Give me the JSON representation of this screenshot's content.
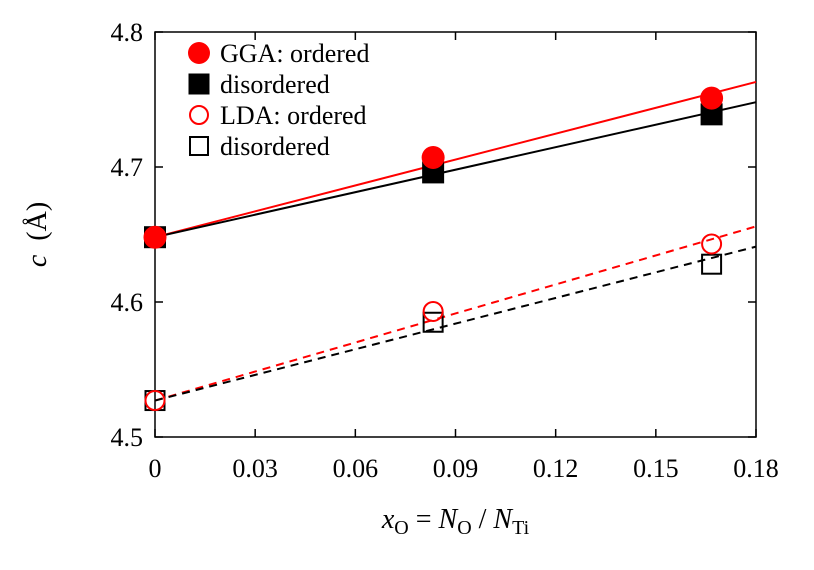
{
  "chart_data": {
    "type": "scatter",
    "xlabel": "x_O = N_O / N_Ti",
    "ylabel": "c (Å)",
    "xlim": [
      0,
      0.18
    ],
    "ylim": [
      4.5,
      4.8
    ],
    "xticks": [
      0,
      0.03,
      0.06,
      0.09,
      0.12,
      0.15,
      0.18
    ],
    "xtick_labels": [
      "0",
      "0.03",
      "0.06",
      "0.09",
      "0.12",
      "0.15",
      "0.18"
    ],
    "yticks": [
      4.5,
      4.6,
      4.7,
      4.8
    ],
    "ytick_labels": [
      "4.5",
      "4.6",
      "4.7",
      "4.8"
    ],
    "legend_position": "top-left",
    "series": [
      {
        "name": "GGA: ordered",
        "marker": "circle-filled",
        "color": "#ff0000",
        "x": [
          0,
          0.0833,
          0.1667
        ],
        "y": [
          4.648,
          4.707,
          4.751
        ],
        "fit": {
          "style": "solid",
          "x": [
            0,
            0.18
          ],
          "y": [
            4.648,
            4.763
          ]
        }
      },
      {
        "name": "disordered",
        "marker": "square-filled",
        "color": "#000000",
        "x": [
          0,
          0.0833,
          0.1667
        ],
        "y": [
          4.648,
          4.696,
          4.739
        ],
        "fit": {
          "style": "solid",
          "x": [
            0,
            0.18
          ],
          "y": [
            4.648,
            4.748
          ]
        }
      },
      {
        "name": "LDA: ordered",
        "marker": "circle-open",
        "color": "#ff0000",
        "x": [
          0,
          0.0833,
          0.1667
        ],
        "y": [
          4.527,
          4.593,
          4.643
        ],
        "fit": {
          "style": "dashed",
          "x": [
            0,
            0.18
          ],
          "y": [
            4.527,
            4.656
          ]
        }
      },
      {
        "name": "disordered",
        "marker": "square-open",
        "color": "#000000",
        "x": [
          0,
          0.0833,
          0.1667
        ],
        "y": [
          4.527,
          4.585,
          4.628
        ],
        "fit": {
          "style": "dashed",
          "x": [
            0,
            0.18
          ],
          "y": [
            4.527,
            4.641
          ]
        }
      }
    ]
  }
}
